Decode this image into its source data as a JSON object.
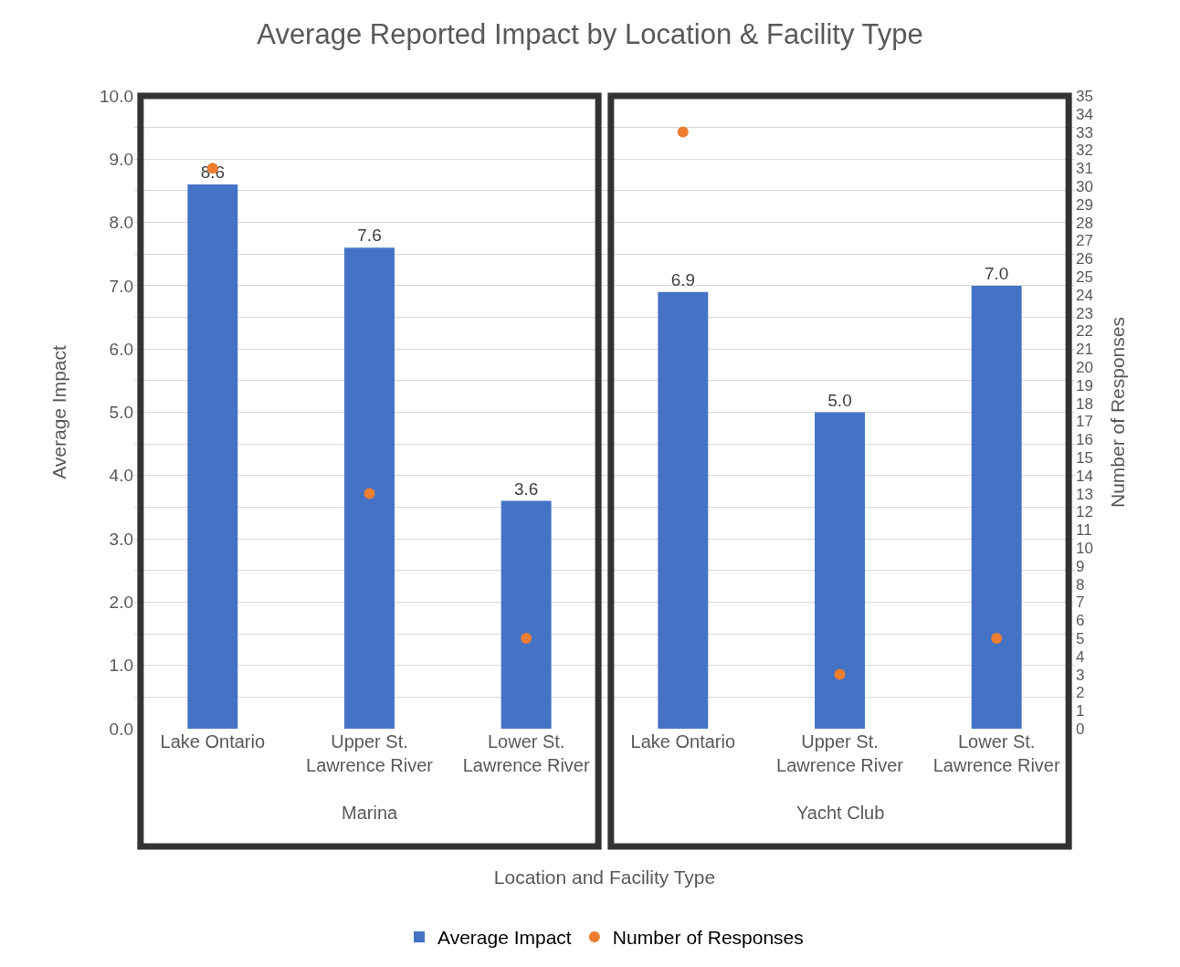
{
  "chart_data": {
    "type": "bar",
    "title": "Average Reported Impact by Location & Facility Type",
    "categories": [
      "Lake Ontario",
      "Upper St. Lawrence River",
      "Lower St. Lawrence River",
      "Lake Ontario",
      "Upper St. Lawrence River",
      "Lower St. Lawrence River"
    ],
    "series": [
      {
        "name": "Average Impact",
        "color": "#4472c4",
        "values": [
          8.6,
          7.6,
          3.6,
          6.9,
          5.0,
          7.0
        ],
        "value_labels": [
          "8.6",
          "7.6",
          "3.6",
          "6.9",
          "5.0",
          "7.0"
        ]
      },
      {
        "name": "Number of Responses",
        "type": "scatter",
        "axis": "y2",
        "color": "#ed7d31",
        "values": [
          31,
          13,
          5,
          33,
          3,
          5
        ]
      }
    ],
    "xlabel": "Location and Facility Type",
    "ylabel": "Average Impact",
    "y2label": "Number of Responses",
    "annotations": [
      "Marina",
      "Yacht Club"
    ],
    "ylim": [
      0,
      10
    ],
    "yticks": [
      {
        "value": 0,
        "label": "0.0"
      },
      {
        "value": 0.5,
        "label": null
      },
      {
        "value": 1,
        "label": "1.0"
      },
      {
        "value": 1.5,
        "label": null
      },
      {
        "value": 2,
        "label": "2.0"
      },
      {
        "value": 2.5,
        "label": null
      },
      {
        "value": 3,
        "label": "3.0"
      },
      {
        "value": 3.5,
        "label": null
      },
      {
        "value": 4,
        "label": "4.0"
      },
      {
        "value": 4.5,
        "label": null
      },
      {
        "value": 5,
        "label": "5.0"
      },
      {
        "value": 5.5,
        "label": null
      },
      {
        "value": 6,
        "label": "6.0"
      },
      {
        "value": 6.5,
        "label": null
      },
      {
        "value": 7,
        "label": "7.0"
      },
      {
        "value": 7.5,
        "label": null
      },
      {
        "value": 8,
        "label": "8.0"
      },
      {
        "value": 8.5,
        "label": null
      },
      {
        "value": 9,
        "label": "9.0"
      },
      {
        "value": 9.5,
        "label": null
      },
      {
        "value": 10,
        "label": "10.0"
      }
    ],
    "y2lim": [
      0,
      35
    ],
    "y2ticks": [
      0,
      1,
      2,
      3,
      4,
      5,
      6,
      7,
      8,
      9,
      10,
      11,
      12,
      13,
      14,
      15,
      16,
      17,
      18,
      19,
      20,
      21,
      22,
      23,
      24,
      25,
      26,
      27,
      28,
      29,
      30,
      31,
      32,
      33,
      34,
      35
    ],
    "grid": "y",
    "legend": "bottom",
    "marker": "circle"
  }
}
